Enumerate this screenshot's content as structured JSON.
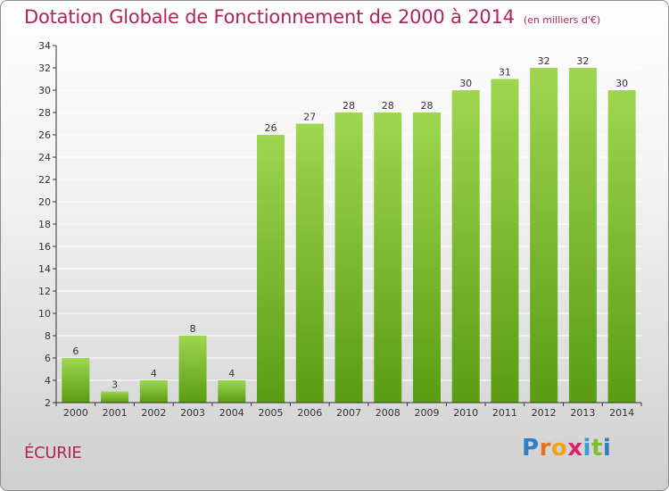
{
  "header": {
    "title": "Dotation Globale de Fonctionnement de 2000 à 2014",
    "subtitle": "(en milliers d'€)"
  },
  "footer": {
    "commune": "ÉCURIE",
    "logo_text": "Proxiti"
  },
  "colors": {
    "title": "#b0245a",
    "bar_top": "#9ed64f",
    "bar_bottom": "#5a9c12",
    "axis": "#333333",
    "gridline": "#ffffff"
  },
  "chart_data": {
    "type": "bar",
    "title": "Dotation Globale de Fonctionnement de 2000 à 2014",
    "subtitle": "(en milliers d'€)",
    "categories": [
      "2000",
      "2001",
      "2002",
      "2003",
      "2004",
      "2005",
      "2006",
      "2007",
      "2008",
      "2009",
      "2010",
      "2011",
      "2012",
      "2013",
      "2014"
    ],
    "values": [
      6,
      3,
      4,
      8,
      4,
      26,
      27,
      28,
      28,
      28,
      30,
      31,
      32,
      32,
      30
    ],
    "yticks": [
      2,
      4,
      6,
      8,
      10,
      12,
      14,
      16,
      18,
      20,
      22,
      24,
      26,
      28,
      30,
      32,
      34
    ],
    "ylim": [
      2,
      34
    ],
    "xlabel": "",
    "ylabel": "",
    "grid": true,
    "data_labels": true
  }
}
